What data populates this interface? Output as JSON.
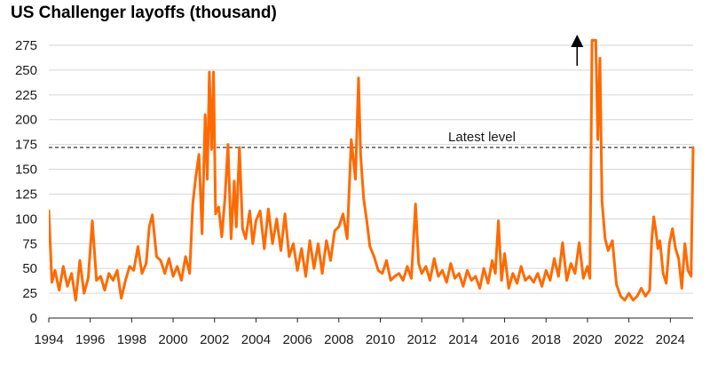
{
  "title": "US Challenger layoffs (thousand)",
  "colors": {
    "series": "#ff6a00",
    "grid": "#d6d6d6",
    "axis": "#222222",
    "reference": "#333333",
    "arrow": "#000000"
  },
  "chart_data": {
    "type": "line",
    "title": "US Challenger layoffs (thousand)",
    "xlabel": "",
    "ylabel": "",
    "xlim": [
      1994,
      2025.1
    ],
    "ylim": [
      0,
      275
    ],
    "yticks": [
      0,
      25,
      50,
      75,
      100,
      125,
      150,
      175,
      200,
      225,
      250,
      275
    ],
    "xticks": [
      1994,
      1996,
      1998,
      2000,
      2002,
      2004,
      2006,
      2008,
      2010,
      2012,
      2014,
      2016,
      2018,
      2020,
      2022,
      2024
    ],
    "grid": "horizontal",
    "legend": "none",
    "reference_line": {
      "label": "Latest level",
      "value": 172,
      "style": "dashed"
    },
    "annotations": [
      {
        "type": "arrow",
        "direction": "up",
        "x": 2019.5,
        "meaning": "series exceeds axis maximum in 2020"
      }
    ],
    "series": [
      {
        "x": [
          1994.0,
          1994.15,
          1994.3,
          1994.5,
          1994.7,
          1994.9,
          1995.1,
          1995.3,
          1995.5,
          1995.7,
          1995.9,
          1996.1,
          1996.3,
          1996.5,
          1996.7,
          1996.9,
          1997.1,
          1997.3,
          1997.5,
          1997.7,
          1997.9,
          1998.1,
          1998.3,
          1998.5,
          1998.7,
          1998.85,
          1999.0,
          1999.2,
          1999.4,
          1999.6,
          1999.8,
          2000.0,
          2000.2,
          2000.4,
          2000.6,
          2000.8,
          2000.95,
          2001.1,
          2001.25,
          2001.4,
          2001.55,
          2001.65,
          2001.75,
          2001.85,
          2001.95,
          2002.05,
          2002.2,
          2002.35,
          2002.5,
          2002.65,
          2002.8,
          2002.95,
          2003.05,
          2003.2,
          2003.35,
          2003.5,
          2003.7,
          2003.85,
          2004.0,
          2004.2,
          2004.4,
          2004.6,
          2004.8,
          2005.0,
          2005.2,
          2005.4,
          2005.6,
          2005.8,
          2006.0,
          2006.2,
          2006.4,
          2006.6,
          2006.8,
          2007.0,
          2007.2,
          2007.4,
          2007.6,
          2007.8,
          2008.0,
          2008.2,
          2008.4,
          2008.6,
          2008.8,
          2008.95,
          2009.05,
          2009.2,
          2009.35,
          2009.5,
          2009.7,
          2009.9,
          2010.1,
          2010.3,
          2010.5,
          2010.7,
          2010.9,
          2011.1,
          2011.3,
          2011.5,
          2011.7,
          2011.85,
          2012.0,
          2012.2,
          2012.4,
          2012.6,
          2012.8,
          2013.0,
          2013.2,
          2013.4,
          2013.6,
          2013.8,
          2014.0,
          2014.2,
          2014.4,
          2014.6,
          2014.8,
          2015.0,
          2015.2,
          2015.4,
          2015.55,
          2015.7,
          2015.85,
          2016.0,
          2016.2,
          2016.4,
          2016.6,
          2016.8,
          2017.0,
          2017.2,
          2017.4,
          2017.6,
          2017.8,
          2018.0,
          2018.2,
          2018.4,
          2018.6,
          2018.8,
          2019.0,
          2019.2,
          2019.4,
          2019.6,
          2019.8,
          2020.0,
          2020.12,
          2020.22,
          2020.3,
          2020.4,
          2020.5,
          2020.6,
          2020.7,
          2020.85,
          2021.0,
          2021.2,
          2021.4,
          2021.6,
          2021.8,
          2022.0,
          2022.2,
          2022.4,
          2022.6,
          2022.8,
          2023.0,
          2023.1,
          2023.2,
          2023.3,
          2023.4,
          2023.5,
          2023.65,
          2023.8,
          2023.95,
          2024.1,
          2024.25,
          2024.4,
          2024.55,
          2024.7,
          2024.85,
          2025.0,
          2025.1
        ],
        "values": [
          108,
          36,
          48,
          28,
          52,
          32,
          45,
          18,
          58,
          25,
          40,
          98,
          38,
          42,
          28,
          45,
          38,
          48,
          20,
          38,
          52,
          48,
          72,
          45,
          55,
          92,
          104,
          62,
          58,
          45,
          60,
          42,
          52,
          38,
          62,
          45,
          115,
          143,
          165,
          85,
          205,
          140,
          248,
          170,
          248,
          105,
          112,
          82,
          120,
          175,
          80,
          138,
          92,
          172,
          90,
          80,
          108,
          75,
          98,
          108,
          70,
          110,
          75,
          100,
          68,
          105,
          62,
          75,
          48,
          70,
          42,
          78,
          50,
          75,
          45,
          78,
          58,
          88,
          92,
          105,
          80,
          180,
          140,
          242,
          165,
          120,
          98,
          72,
          62,
          48,
          45,
          58,
          38,
          42,
          45,
          38,
          52,
          40,
          115,
          55,
          45,
          52,
          38,
          60,
          42,
          48,
          36,
          55,
          40,
          45,
          32,
          48,
          38,
          42,
          30,
          50,
          35,
          58,
          45,
          98,
          38,
          65,
          30,
          45,
          35,
          52,
          38,
          42,
          36,
          45,
          32,
          48,
          38,
          60,
          42,
          76,
          38,
          55,
          45,
          76,
          40,
          52,
          40,
          280,
          280,
          280,
          180,
          262,
          118,
          80,
          68,
          78,
          34,
          22,
          18,
          25,
          18,
          22,
          30,
          22,
          28,
          78,
          102,
          88,
          70,
          78,
          45,
          35,
          75,
          90,
          70,
          60,
          30,
          75,
          48,
          42,
          172
        ]
      }
    ]
  }
}
